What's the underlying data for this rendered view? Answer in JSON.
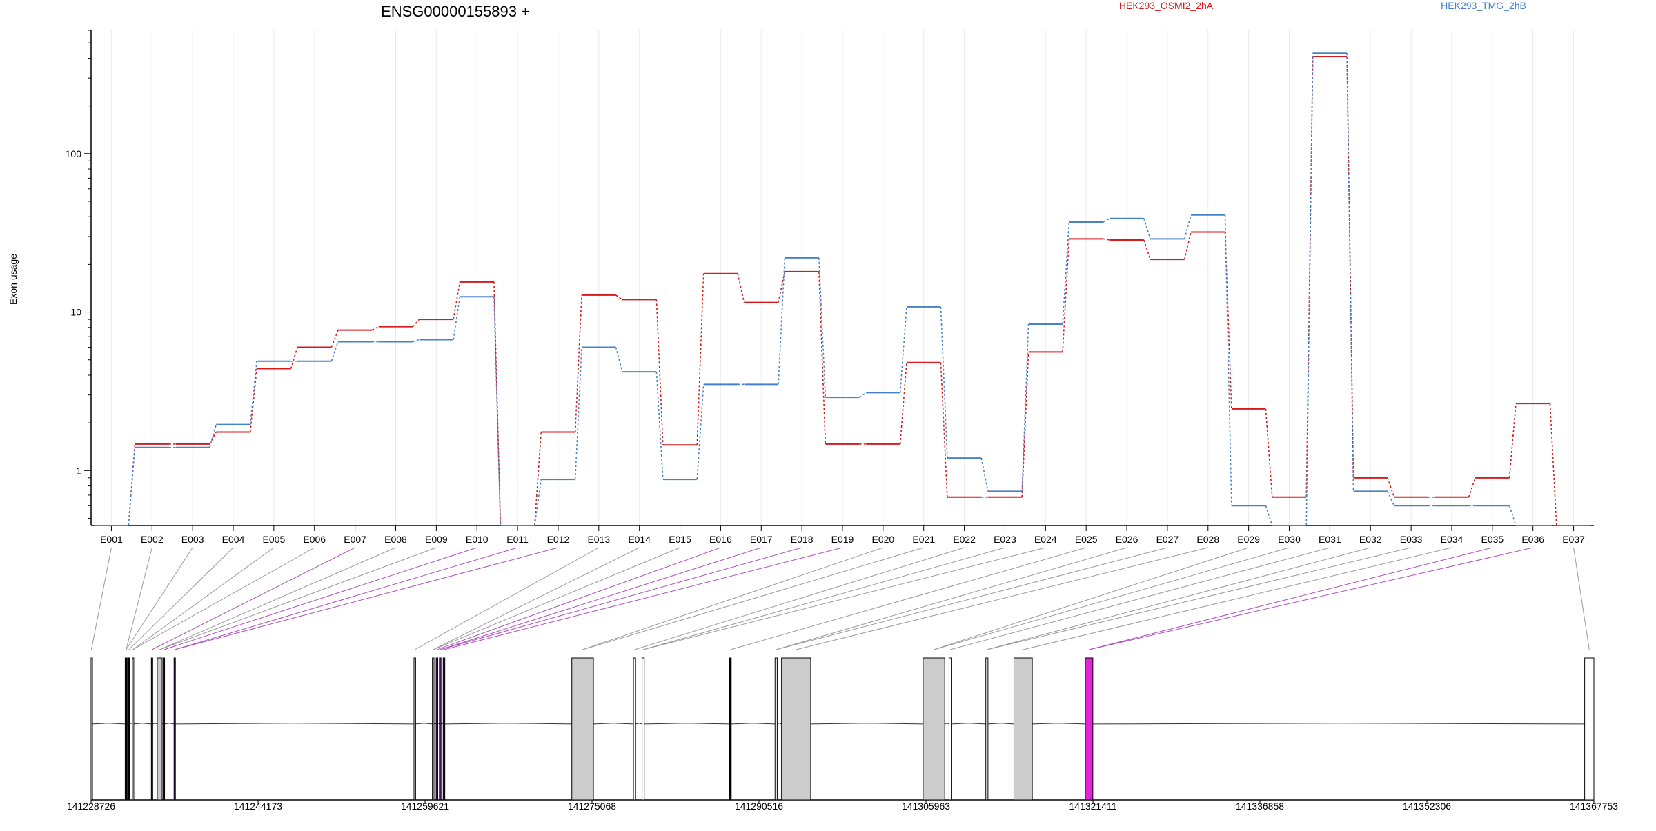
{
  "chart_data": {
    "type": "line",
    "title": "ENSG00000155893 +",
    "ylabel": "Exon usage",
    "xlabel": "",
    "y_scale": "log",
    "ylim": [
      0.45,
      600
    ],
    "y_ticks": [
      1,
      10,
      100
    ],
    "y_tick_labels": [
      "1",
      "10",
      "100"
    ],
    "grid": "vertical",
    "legend_position": "top",
    "categories": [
      "E001",
      "E002",
      "E003",
      "E004",
      "E005",
      "E006",
      "E007",
      "E008",
      "E009",
      "E010",
      "E011",
      "E012",
      "E013",
      "E014",
      "E015",
      "E016",
      "E017",
      "E018",
      "E019",
      "E020",
      "E021",
      "E022",
      "E023",
      "E024",
      "E025",
      "E026",
      "E027",
      "E028",
      "E029",
      "E030",
      "E031",
      "E032",
      "E033",
      "E034",
      "E035",
      "E036",
      "E037"
    ],
    "series": [
      {
        "name": "HEK293_OSMI2_2hA",
        "color": "#d7191c",
        "values": [
          0.45,
          1.47,
          1.47,
          1.75,
          4.4,
          6.0,
          7.7,
          8.1,
          9.0,
          15.5,
          0.45,
          1.75,
          12.8,
          12.0,
          1.45,
          17.5,
          11.5,
          18.0,
          1.47,
          1.47,
          4.8,
          0.68,
          0.68,
          5.6,
          29.0,
          28.5,
          21.5,
          32.0,
          2.45,
          0.68,
          410,
          0.9,
          0.68,
          0.68,
          0.9,
          2.65,
          0.45
        ]
      },
      {
        "name": "HEK293_TMG_2hB",
        "color": "#4682c8",
        "values": [
          0.45,
          1.4,
          1.4,
          1.95,
          4.9,
          4.9,
          6.5,
          6.5,
          6.7,
          12.5,
          0.45,
          0.88,
          6.0,
          4.2,
          0.88,
          3.5,
          3.5,
          22.0,
          2.9,
          3.1,
          10.8,
          1.2,
          0.74,
          8.4,
          37.0,
          39.0,
          29.0,
          41.0,
          0.6,
          0.45,
          430,
          0.74,
          0.6,
          0.6,
          0.6,
          0.45,
          0.45
        ]
      }
    ],
    "gene_model": {
      "coordinate_ticks": [
        141228726,
        141244173,
        141259621,
        141275068,
        141290516,
        141305963,
        141321411,
        141336858,
        141352306,
        141367753
      ],
      "exons": [
        {
          "start": 141228726,
          "end": 141228780,
          "fill": "white"
        },
        {
          "start": 141231880,
          "end": 141232060,
          "fill": "black"
        },
        {
          "start": 141232130,
          "end": 141232320,
          "fill": "black"
        },
        {
          "start": 141232550,
          "end": 141232620,
          "fill": "white"
        },
        {
          "start": 141234300,
          "end": 141234420,
          "fill": "purple"
        },
        {
          "start": 141234850,
          "end": 141235300,
          "fill": "gray"
        },
        {
          "start": 141235400,
          "end": 141235520,
          "fill": "purple"
        },
        {
          "start": 141236400,
          "end": 141236520,
          "fill": "purple"
        },
        {
          "start": 141258600,
          "end": 141258750,
          "fill": "white"
        },
        {
          "start": 141260300,
          "end": 141260450,
          "fill": "white"
        },
        {
          "start": 141260650,
          "end": 141260800,
          "fill": "purple"
        },
        {
          "start": 141260950,
          "end": 141261100,
          "fill": "purple"
        },
        {
          "start": 141261300,
          "end": 141261450,
          "fill": "purple"
        },
        {
          "start": 141273200,
          "end": 141275200,
          "fill": "gray"
        },
        {
          "start": 141278900,
          "end": 141279100,
          "fill": "white"
        },
        {
          "start": 141279700,
          "end": 141279900,
          "fill": "white"
        },
        {
          "start": 141287800,
          "end": 141287950,
          "fill": "black"
        },
        {
          "start": 141292000,
          "end": 141292200,
          "fill": "white"
        },
        {
          "start": 141292600,
          "end": 141295300,
          "fill": "gray"
        },
        {
          "start": 141305700,
          "end": 141307700,
          "fill": "gray"
        },
        {
          "start": 141308100,
          "end": 141308300,
          "fill": "white"
        },
        {
          "start": 141311500,
          "end": 141311700,
          "fill": "white"
        },
        {
          "start": 141314100,
          "end": 141315800,
          "fill": "gray"
        },
        {
          "start": 141320700,
          "end": 141321400,
          "fill": "magenta"
        },
        {
          "start": 141366900,
          "end": 141367753,
          "fill": "white"
        }
      ]
    }
  }
}
